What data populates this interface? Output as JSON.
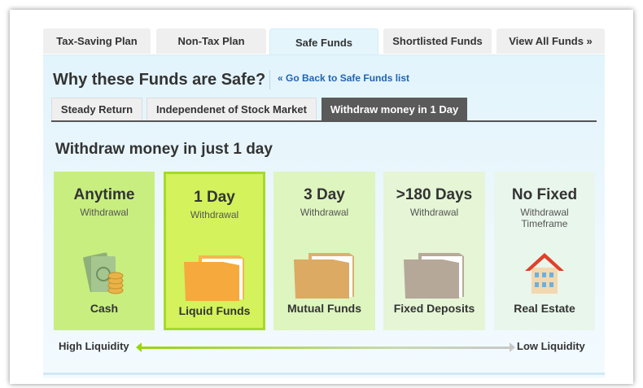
{
  "top_tabs": [
    "Tax-Saving Plan",
    "Non-Tax Plan",
    "Safe Funds",
    "Shortlisted Funds",
    "View All Funds »"
  ],
  "active_top_tab": "Safe Funds",
  "heading": "Why these Funds are Safe?",
  "back_link": "« Go Back to Safe Funds list",
  "sub_tabs": [
    "Steady Return",
    "Independenet of Stock Market",
    "Withdraw money in 1 Day"
  ],
  "active_sub_tab": "Withdraw money in 1 Day",
  "section_title": "Withdraw money in just 1 day",
  "cards": [
    {
      "title": "Anytime",
      "subtitle": "Withdrawal",
      "label": "Cash",
      "icon": "cash-icon",
      "color": "#c8ee80"
    },
    {
      "title": "1 Day",
      "subtitle": "Withdrawal",
      "label": "Liquid Funds",
      "icon": "folder-icon",
      "color": "#d3f25c",
      "highlighted": true
    },
    {
      "title": "3 Day",
      "subtitle": "Withdrawal",
      "label": "Mutual Funds",
      "icon": "folder-icon",
      "color": "#def5bf"
    },
    {
      "title": ">180 Days",
      "subtitle": "Withdrawal",
      "label": "Fixed Deposits",
      "icon": "folder-icon",
      "color": "#e5f5d6"
    },
    {
      "title": "No Fixed",
      "subtitle": "Withdrawal Timeframe",
      "label": "Real Estate",
      "icon": "house-icon",
      "color": "#e9f6ec"
    }
  ],
  "scale": {
    "left": "High Liquidity",
    "right": "Low Liquidity"
  }
}
